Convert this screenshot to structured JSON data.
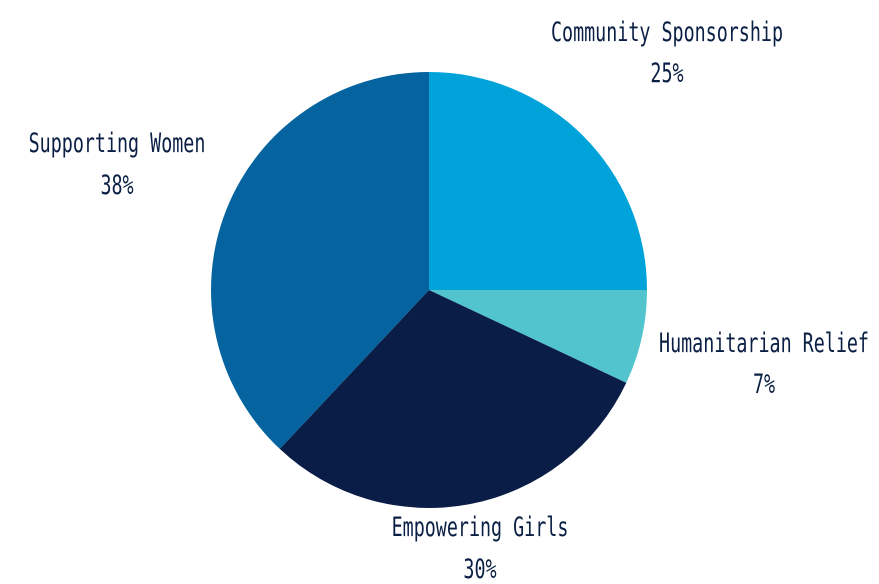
{
  "chart_data": {
    "type": "pie",
    "title": "",
    "start_angle_deg": 0,
    "direction": "clockwise",
    "slices": [
      {
        "label": "Community Sponsorship",
        "value": 25,
        "value_label": "25%",
        "color": "#00a3d9"
      },
      {
        "label": "Humanitarian Relief",
        "value": 7,
        "value_label": "7%",
        "color": "#52c4cd"
      },
      {
        "label": "Empowering Girls",
        "value": 30,
        "value_label": "30%",
        "color": "#0a1d47"
      },
      {
        "label": "Supporting Women",
        "value": 38,
        "value_label": "38%",
        "color": "#05649f"
      }
    ],
    "legend": "none",
    "labels_outside": true
  }
}
